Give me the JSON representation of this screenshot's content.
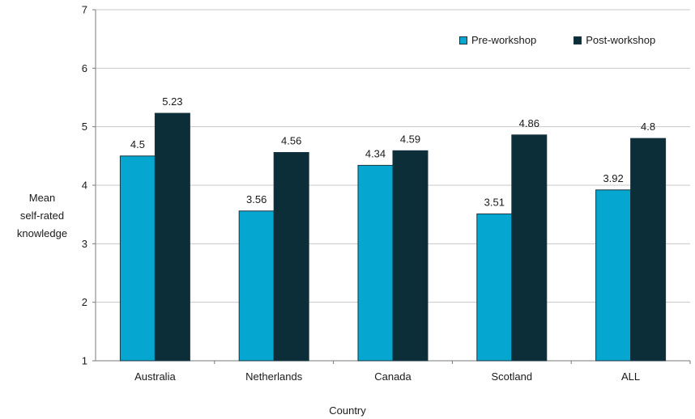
{
  "chart_data": {
    "type": "bar",
    "categories": [
      "Australia",
      "Netherlands",
      "Canada",
      "Scotland",
      "ALL"
    ],
    "series": [
      {
        "name": "Pre-workshop",
        "values": [
          4.5,
          3.56,
          4.34,
          3.51,
          3.92
        ],
        "labels": [
          "4.5",
          "3.56",
          "4.34",
          "3.51",
          "3.92"
        ],
        "color": "#05a6cf"
      },
      {
        "name": "Post-workshop",
        "values": [
          5.23,
          4.56,
          4.59,
          4.86,
          4.8
        ],
        "labels": [
          "5.23",
          "4.56",
          "4.59",
          "4.86",
          "4.8"
        ],
        "color": "#0c2e38"
      }
    ],
    "ylabel_lines": [
      "Mean",
      "self-rated",
      "knowledge"
    ],
    "xlabel": "Country",
    "ylim": [
      1,
      7
    ],
    "yticks": [
      "1",
      "2",
      "3",
      "4",
      "5",
      "6",
      "7"
    ],
    "grid": true,
    "legend_position": "top-right"
  }
}
